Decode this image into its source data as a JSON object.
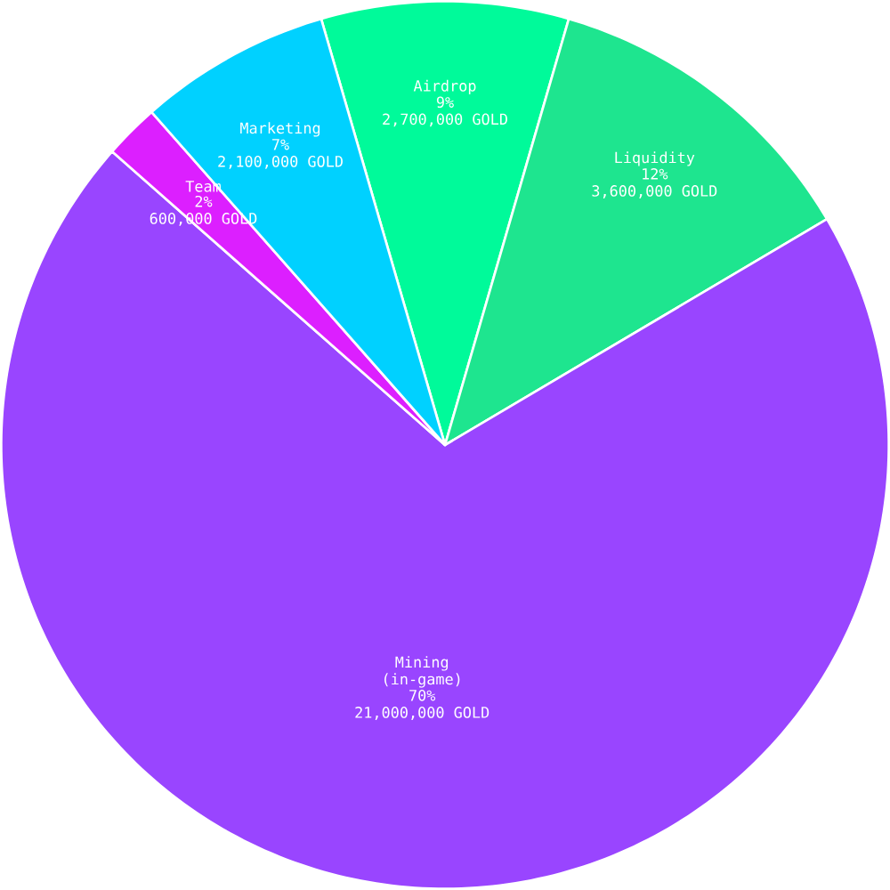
{
  "chart_data": {
    "type": "pie",
    "categories": [
      "Airdrop",
      "Liquidity",
      "Mining (in-game)",
      "Team",
      "Marketing"
    ],
    "values": [
      9,
      12,
      70,
      2,
      7
    ],
    "colors": [
      "#00fa9a",
      "#1ee58f",
      "#9945ff",
      "#dc1fff",
      "#00d1ff"
    ],
    "value_labels": [
      "9%",
      "12%",
      "70%",
      "2%",
      "7%"
    ],
    "annotations": [
      "2,700,000 GOLD",
      "3,600,000 GOLD",
      "21,000,000 GOLD",
      "600,000 GOLD",
      "2,100,000 GOLD"
    ]
  }
}
